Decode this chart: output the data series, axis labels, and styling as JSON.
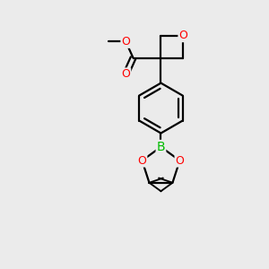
{
  "bg_color": "#ebebeb",
  "bond_color": "#000000",
  "oxygen_color": "#ff0000",
  "boron_color": "#00bb00",
  "line_width": 1.6,
  "fig_size": [
    3.0,
    3.0
  ],
  "dpi": 100,
  "xlim": [
    0,
    10
  ],
  "ylim": [
    0,
    10
  ]
}
